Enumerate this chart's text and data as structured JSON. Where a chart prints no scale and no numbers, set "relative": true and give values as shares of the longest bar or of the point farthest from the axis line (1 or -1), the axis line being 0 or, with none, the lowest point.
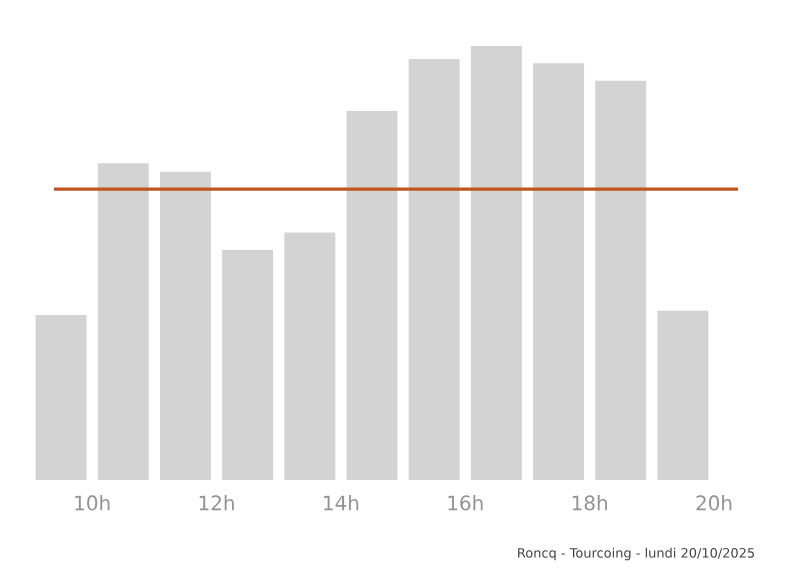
{
  "chart_data": {
    "type": "bar",
    "relative": true,
    "x": [
      9.5,
      10.5,
      11.5,
      12.5,
      13.5,
      14.5,
      15.5,
      16.5,
      17.5,
      18.5,
      19.5
    ],
    "values": [
      0.38,
      0.73,
      0.71,
      0.53,
      0.57,
      0.85,
      0.97,
      1,
      0.96,
      0.92,
      0.39
    ],
    "color": "#d3d3d3",
    "xlim": [
      9,
      20
    ],
    "xticks": [
      {
        "value": 10,
        "label": "10h"
      },
      {
        "value": 12,
        "label": "12h"
      },
      {
        "value": 14,
        "label": "14h"
      },
      {
        "value": 16,
        "label": "16h"
      },
      {
        "value": 18,
        "label": "18h"
      },
      {
        "value": 20,
        "label": "20h"
      }
    ],
    "ref_lines": [
      {
        "axis": "y",
        "value": 0.67,
        "color": "#c0561e"
      }
    ],
    "annotations": [
      "Roncq - Tourcoing - lundi 20/10/2025"
    ]
  }
}
